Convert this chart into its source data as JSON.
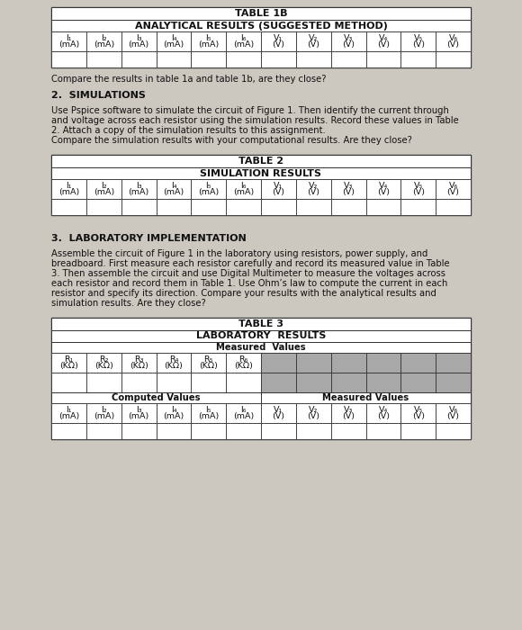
{
  "page_bg": "#ccc8c0",
  "table_bg": "#ffffff",
  "gray_cell_bg": "#a8a8a8",
  "border_color": "#333333",
  "text_color": "#111111",
  "table1b_title": "TABLE 1B",
  "table1b_subtitle": "ANALYTICAL RESULTS (SUGGESTED METHOD)",
  "table2_title": "TABLE 2",
  "table2_subtitle": "SIMULATION RESULTS",
  "table3_title": "TABLE 3",
  "table3_subtitle": "LABORATORY  RESULTS",
  "measured_values_header": "Measured  Values",
  "computed_label": "Computed Values",
  "measured_label": "Measured Values",
  "question1": "Compare the results in table 1a and table 1b, are they close?",
  "sec2_title": "2.  SIMULATIONS",
  "sec2_lines": [
    "Use Pspice software to simulate the circuit of Figure 1. Then identify the current through",
    "and voltage across each resistor using the simulation results. Record these values in Table",
    "2. Attach a copy of the simulation results to this assignment.",
    "Compare the simulation results with your computational results. Are they close?"
  ],
  "sec3_title": "3.  LABORATORY IMPLEMENTATION",
  "sec3_lines": [
    "Assemble the circuit of Figure 1 in the laboratory using resistors, power supply, and",
    "breadboard. First measure each resistor carefully and record its measured value in Table",
    "3. Then assemble the circuit and use Digital Multimeter to measure the voltages across",
    "each resistor and record them in Table 1. Use Ohm’s law to compute the current in each",
    "resistor and specify its direction. Compare your results with the analytical results and",
    "simulation results. Are they close?"
  ],
  "i_headers": [
    "I₁",
    "I₂",
    "I₃",
    "I₄",
    "I₅",
    "I₆"
  ],
  "i_units": [
    "(mA)",
    "(mA)",
    "(mA)",
    "(mA)",
    "(mA)",
    "(mA)"
  ],
  "v_headers": [
    "V₁",
    "V₂",
    "V₃",
    "V₄",
    "V₅",
    "V₆"
  ],
  "v_units": [
    "(V)",
    "(V)",
    "(V)",
    "(V)",
    "(V)",
    "(V)"
  ],
  "r_headers": [
    "R₁",
    "R₂",
    "R₃",
    "R₄",
    "R₅",
    "R₆"
  ],
  "r_units": [
    "(KΩ)",
    "(KΩ)",
    "(KΩ)",
    "(KΩ)",
    "(KΩ)",
    "(KΩ)"
  ],
  "fs_title": 8.0,
  "fs_hdr": 6.8,
  "fs_body": 7.2,
  "fs_sec": 8.0,
  "fs_sec_body": 7.2
}
